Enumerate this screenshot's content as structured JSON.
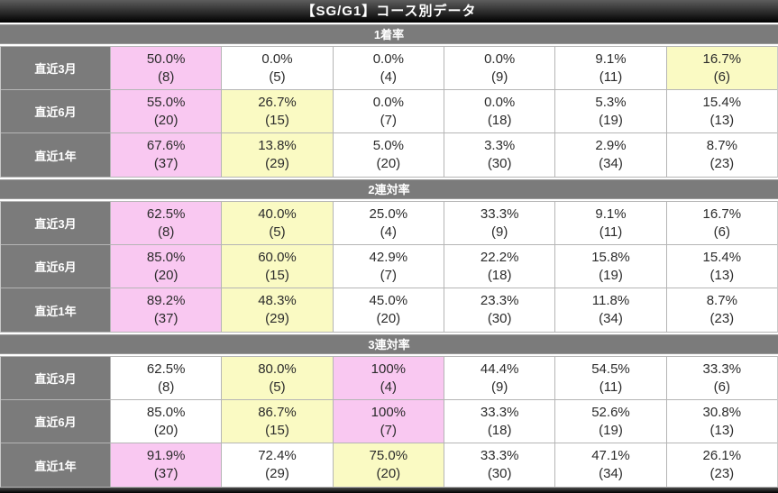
{
  "title": "【SG/G1】コース別データ",
  "colors": {
    "highlight_pink": "#f9c8f1",
    "highlight_yellow": "#fafac3",
    "section_gray": "#7b7b7b",
    "title_bar_black": "#000000"
  },
  "sections": [
    {
      "name": "1着率",
      "rows": [
        {
          "label": "直近3月",
          "cells": [
            {
              "value": "50.0%",
              "count": "(8)",
              "hl": "pink"
            },
            {
              "value": "0.0%",
              "count": "(5)",
              "hl": "none"
            },
            {
              "value": "0.0%",
              "count": "(4)",
              "hl": "none"
            },
            {
              "value": "0.0%",
              "count": "(9)",
              "hl": "none"
            },
            {
              "value": "9.1%",
              "count": "(11)",
              "hl": "none"
            },
            {
              "value": "16.7%",
              "count": "(6)",
              "hl": "yellow"
            }
          ]
        },
        {
          "label": "直近6月",
          "cells": [
            {
              "value": "55.0%",
              "count": "(20)",
              "hl": "pink"
            },
            {
              "value": "26.7%",
              "count": "(15)",
              "hl": "yellow"
            },
            {
              "value": "0.0%",
              "count": "(7)",
              "hl": "none"
            },
            {
              "value": "0.0%",
              "count": "(18)",
              "hl": "none"
            },
            {
              "value": "5.3%",
              "count": "(19)",
              "hl": "none"
            },
            {
              "value": "15.4%",
              "count": "(13)",
              "hl": "none"
            }
          ]
        },
        {
          "label": "直近1年",
          "cells": [
            {
              "value": "67.6%",
              "count": "(37)",
              "hl": "pink"
            },
            {
              "value": "13.8%",
              "count": "(29)",
              "hl": "yellow"
            },
            {
              "value": "5.0%",
              "count": "(20)",
              "hl": "none"
            },
            {
              "value": "3.3%",
              "count": "(30)",
              "hl": "none"
            },
            {
              "value": "2.9%",
              "count": "(34)",
              "hl": "none"
            },
            {
              "value": "8.7%",
              "count": "(23)",
              "hl": "none"
            }
          ]
        }
      ]
    },
    {
      "name": "2連対率",
      "rows": [
        {
          "label": "直近3月",
          "cells": [
            {
              "value": "62.5%",
              "count": "(8)",
              "hl": "pink"
            },
            {
              "value": "40.0%",
              "count": "(5)",
              "hl": "yellow"
            },
            {
              "value": "25.0%",
              "count": "(4)",
              "hl": "none"
            },
            {
              "value": "33.3%",
              "count": "(9)",
              "hl": "none"
            },
            {
              "value": "9.1%",
              "count": "(11)",
              "hl": "none"
            },
            {
              "value": "16.7%",
              "count": "(6)",
              "hl": "none"
            }
          ]
        },
        {
          "label": "直近6月",
          "cells": [
            {
              "value": "85.0%",
              "count": "(20)",
              "hl": "pink"
            },
            {
              "value": "60.0%",
              "count": "(15)",
              "hl": "yellow"
            },
            {
              "value": "42.9%",
              "count": "(7)",
              "hl": "none"
            },
            {
              "value": "22.2%",
              "count": "(18)",
              "hl": "none"
            },
            {
              "value": "15.8%",
              "count": "(19)",
              "hl": "none"
            },
            {
              "value": "15.4%",
              "count": "(13)",
              "hl": "none"
            }
          ]
        },
        {
          "label": "直近1年",
          "cells": [
            {
              "value": "89.2%",
              "count": "(37)",
              "hl": "pink"
            },
            {
              "value": "48.3%",
              "count": "(29)",
              "hl": "yellow"
            },
            {
              "value": "45.0%",
              "count": "(20)",
              "hl": "none"
            },
            {
              "value": "23.3%",
              "count": "(30)",
              "hl": "none"
            },
            {
              "value": "11.8%",
              "count": "(34)",
              "hl": "none"
            },
            {
              "value": "8.7%",
              "count": "(23)",
              "hl": "none"
            }
          ]
        }
      ]
    },
    {
      "name": "3連対率",
      "rows": [
        {
          "label": "直近3月",
          "cells": [
            {
              "value": "62.5%",
              "count": "(8)",
              "hl": "none"
            },
            {
              "value": "80.0%",
              "count": "(5)",
              "hl": "yellow"
            },
            {
              "value": "100%",
              "count": "(4)",
              "hl": "pink"
            },
            {
              "value": "44.4%",
              "count": "(9)",
              "hl": "none"
            },
            {
              "value": "54.5%",
              "count": "(11)",
              "hl": "none"
            },
            {
              "value": "33.3%",
              "count": "(6)",
              "hl": "none"
            }
          ]
        },
        {
          "label": "直近6月",
          "cells": [
            {
              "value": "85.0%",
              "count": "(20)",
              "hl": "none"
            },
            {
              "value": "86.7%",
              "count": "(15)",
              "hl": "yellow"
            },
            {
              "value": "100%",
              "count": "(7)",
              "hl": "pink"
            },
            {
              "value": "33.3%",
              "count": "(18)",
              "hl": "none"
            },
            {
              "value": "52.6%",
              "count": "(19)",
              "hl": "none"
            },
            {
              "value": "30.8%",
              "count": "(13)",
              "hl": "none"
            }
          ]
        },
        {
          "label": "直近1年",
          "cells": [
            {
              "value": "91.9%",
              "count": "(37)",
              "hl": "pink"
            },
            {
              "value": "72.4%",
              "count": "(29)",
              "hl": "none"
            },
            {
              "value": "75.0%",
              "count": "(20)",
              "hl": "yellow"
            },
            {
              "value": "33.3%",
              "count": "(30)",
              "hl": "none"
            },
            {
              "value": "47.1%",
              "count": "(34)",
              "hl": "none"
            },
            {
              "value": "26.1%",
              "count": "(23)",
              "hl": "none"
            }
          ]
        }
      ]
    }
  ]
}
